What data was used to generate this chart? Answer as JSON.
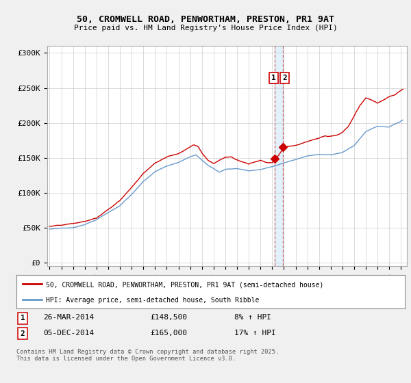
{
  "title": "50, CROMWELL ROAD, PENWORTHAM, PRESTON, PR1 9AT",
  "subtitle": "Price paid vs. HM Land Registry's House Price Index (HPI)",
  "ylabel_ticks": [
    "£0",
    "£50K",
    "£100K",
    "£150K",
    "£200K",
    "£250K",
    "£300K"
  ],
  "ytick_values": [
    0,
    50000,
    100000,
    150000,
    200000,
    250000,
    300000
  ],
  "ylim": [
    -5000,
    310000
  ],
  "xlim_start": 1994.8,
  "xlim_end": 2025.5,
  "legend_entry1": "50, CROMWELL ROAD, PENWORTHAM, PRESTON, PR1 9AT (semi-detached house)",
  "legend_entry2": "HPI: Average price, semi-detached house, South Ribble",
  "color_red": "#cc0000",
  "color_blue": "#6699cc",
  "marker1_date": 2014.23,
  "marker1_value": 148500,
  "marker2_date": 2014.92,
  "marker2_value": 165000,
  "footer": "Contains HM Land Registry data © Crown copyright and database right 2025.\nThis data is licensed under the Open Government Licence v3.0.",
  "bg_color": "#f0f0f0",
  "plot_bg_color": "#ffffff"
}
